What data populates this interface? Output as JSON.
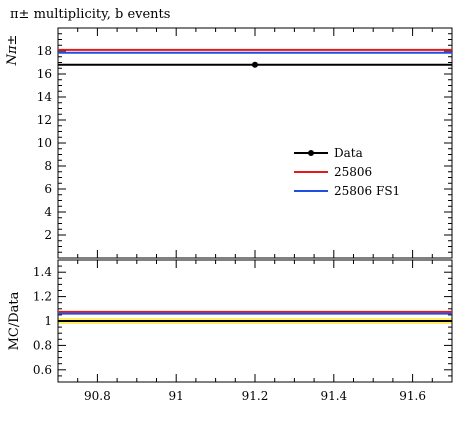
{
  "chart_data": [
    {
      "panel": "main",
      "type": "line",
      "title": "π± multiplicity, b events",
      "ylabel": "Nπ±",
      "xlim": [
        90.7,
        91.7
      ],
      "ylim": [
        0,
        20
      ],
      "yticks": [
        2,
        4,
        6,
        8,
        10,
        12,
        14,
        16,
        18
      ],
      "series": [
        {
          "name": "Data",
          "kind": "point",
          "x": 91.2,
          "y": 16.8,
          "xerr": [
            90.7,
            91.7
          ],
          "color": "#000000"
        },
        {
          "name": "25806",
          "kind": "hline",
          "x": [
            90.7,
            91.7
          ],
          "y": 18.1,
          "color": "#e41a1c"
        },
        {
          "name": "25806 FS1",
          "kind": "hline",
          "x": [
            90.7,
            91.7
          ],
          "y": 17.85,
          "color": "#1f4fe0"
        }
      ],
      "legend": {
        "position": "center-right",
        "entries": [
          "Data",
          "25806",
          "25806 FS1"
        ]
      }
    },
    {
      "panel": "ratio",
      "type": "line",
      "ylabel": "MC/Data",
      "xlim": [
        90.7,
        91.7
      ],
      "ylim": [
        0.5,
        1.5
      ],
      "yticks": [
        0.6,
        0.8,
        1,
        1.2,
        1.4
      ],
      "xticks": [
        90.8,
        91,
        91.2,
        91.4,
        91.6
      ],
      "band": {
        "ylow": 0.975,
        "yhigh": 1.025,
        "color": "#ffee66"
      },
      "series": [
        {
          "name": "Data",
          "y": 1.0,
          "color": "#000000"
        },
        {
          "name": "25806",
          "y": 1.075,
          "color": "#e41a1c"
        },
        {
          "name": "25806 FS1",
          "y": 1.06,
          "color": "#1f4fe0"
        }
      ]
    }
  ]
}
